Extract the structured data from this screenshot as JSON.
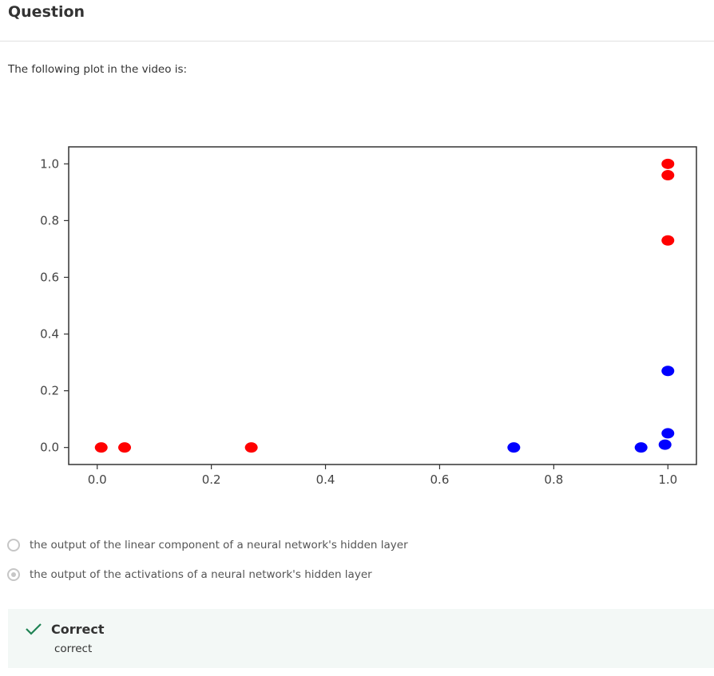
{
  "header": {
    "title": "Question"
  },
  "question": {
    "prompt": "The following plot in the video is:"
  },
  "chart_data": {
    "type": "scatter",
    "xlim": [
      -0.05,
      1.05
    ],
    "ylim": [
      -0.06,
      1.06
    ],
    "xticks": [
      0.0,
      0.2,
      0.4,
      0.6,
      0.8,
      1.0
    ],
    "yticks": [
      0.0,
      0.2,
      0.4,
      0.6,
      0.8,
      1.0
    ],
    "tick_labels_x": [
      "0.0",
      "0.2",
      "0.4",
      "0.6",
      "0.8",
      "1.0"
    ],
    "tick_labels_y": [
      "0.0",
      "0.2",
      "0.4",
      "0.6",
      "0.8",
      "1.0"
    ],
    "grid": false,
    "series": [
      {
        "color": "#ff0000",
        "points": [
          [
            0.007,
            0.0
          ],
          [
            0.048,
            0.0
          ],
          [
            0.27,
            0.0
          ],
          [
            1.0,
            1.0
          ],
          [
            1.0,
            0.96
          ],
          [
            1.0,
            0.73
          ]
        ]
      },
      {
        "color": "#0000ff",
        "points": [
          [
            0.73,
            0.0
          ],
          [
            0.953,
            0.0
          ],
          [
            0.995,
            0.01
          ],
          [
            1.0,
            0.05
          ],
          [
            1.0,
            0.27
          ]
        ]
      }
    ]
  },
  "options": [
    {
      "label": "the  output of the linear component of a neural network's hidden layer",
      "selected": false
    },
    {
      "label": "the  output of the activations  of a neural network's hidden layer",
      "selected": true
    }
  ],
  "feedback": {
    "title": "Correct",
    "text": "correct",
    "accent": "#1f8354"
  }
}
